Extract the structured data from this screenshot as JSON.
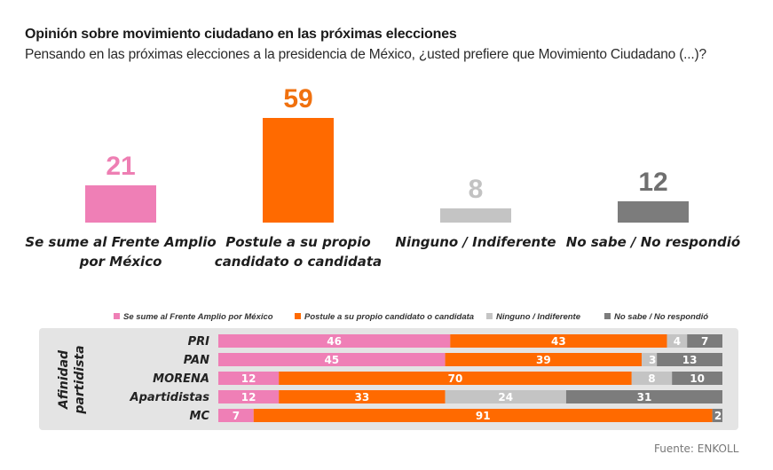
{
  "header": {
    "title": "Opinión sobre movimiento ciudadano en las próximas elecciones",
    "subtitle": "Pensando en las próximas elecciones a la presidencia de México, ¿usted prefiere que Movimiento Ciudadano (...)?"
  },
  "source": "Fuente: ENKOLL",
  "colors": {
    "pink": "#ef7fb6",
    "orange": "#ff6a00",
    "light_gray": "#c4c4c4",
    "dark_gray": "#7c7c7c",
    "panel": "#e4e4e4"
  },
  "chart_data": [
    {
      "type": "bar",
      "title": "Opinión sobre movimiento ciudadano en las próximas elecciones",
      "categories": [
        "Se sume al Frente Amplio por México",
        "Postule a su propio candidato o candidata",
        "Ninguno / Indiferente",
        "No sabe / No respondió"
      ],
      "category_lines": [
        [
          "Se sume al Frente Amplio",
          "por México"
        ],
        [
          "Postule a su propio",
          "candidato o candidata"
        ],
        [
          "Ninguno / Indiferente"
        ],
        [
          "No sabe / No respondió"
        ]
      ],
      "values": [
        21,
        59,
        8,
        12
      ],
      "colors": [
        "#ef7fb6",
        "#ff6a00",
        "#c4c4c4",
        "#7c7c7c"
      ],
      "label_colors": [
        "#ee7fb3",
        "#f0710f",
        "#c2c2c2",
        "#6f6f6f"
      ],
      "xlabel": "",
      "ylabel": "",
      "ylim": [
        0,
        59
      ],
      "grid": false
    },
    {
      "type": "bar",
      "orientation": "horizontal-stacked",
      "group_label": [
        "Afinidad",
        "partidista"
      ],
      "categories": [
        "PRI",
        "PAN",
        "MORENA",
        "Apartidistas",
        "MC"
      ],
      "series": [
        {
          "name": "Se sume al Frente Amplio por México",
          "color": "#ef7fb6",
          "values": [
            46,
            45,
            12,
            12,
            7
          ]
        },
        {
          "name": "Postule a su propio candidato o candidata",
          "color": "#ff6a00",
          "values": [
            43,
            39,
            70,
            33,
            91
          ]
        },
        {
          "name": "Ninguno / Indiferente",
          "color": "#c4c4c4",
          "values": [
            4,
            3,
            8,
            24,
            0
          ]
        },
        {
          "name": "No sabe / No respondió",
          "color": "#7c7c7c",
          "values": [
            7,
            13,
            10,
            31,
            2
          ]
        }
      ],
      "legend_position": "top",
      "xlim": [
        0,
        100
      ],
      "grid": false
    }
  ]
}
